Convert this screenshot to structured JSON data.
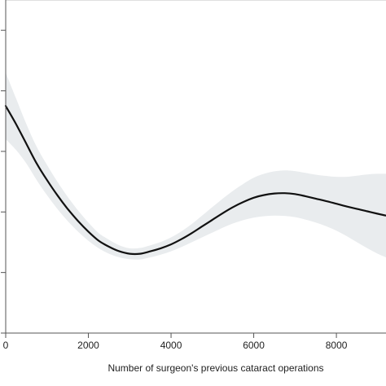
{
  "chart_data": {
    "type": "line",
    "title": "",
    "xlabel": "Number of surgeon's previous cataract operations",
    "ylabel": "",
    "xlim": [
      0,
      9200
    ],
    "x_ticks": [
      0,
      2000,
      4000,
      6000,
      8000
    ],
    "x_tick_labels": [
      "0",
      "2000",
      "4000",
      "6000",
      "8000"
    ],
    "grid": false,
    "legend": "none",
    "colors": {
      "line": "#111111",
      "band": "#e9ecee",
      "frame": "#bfbfbf",
      "axis": "#555555"
    },
    "series": [
      {
        "x": [
          0,
          250,
          500,
          750,
          1000,
          1250,
          1500,
          1750,
          2000,
          2250,
          2500,
          2750,
          3000,
          3250,
          3500,
          3750,
          4000,
          4250,
          4500,
          4750,
          5000,
          5250,
          5500,
          5750,
          6000,
          6250,
          6500,
          6750,
          7000,
          7250,
          7500,
          7750,
          8000,
          8250,
          8500,
          8750,
          9000,
          9200
        ],
        "y": [
          0.75,
          0.69,
          0.625,
          0.56,
          0.505,
          0.455,
          0.41,
          0.37,
          0.335,
          0.305,
          0.285,
          0.27,
          0.262,
          0.262,
          0.27,
          0.28,
          0.293,
          0.31,
          0.33,
          0.352,
          0.374,
          0.396,
          0.416,
          0.433,
          0.447,
          0.456,
          0.461,
          0.462,
          0.459,
          0.452,
          0.444,
          0.436,
          0.427,
          0.418,
          0.41,
          0.402,
          0.394,
          0.388
        ],
        "lower": [
          0.64,
          0.605,
          0.56,
          0.505,
          0.455,
          0.41,
          0.37,
          0.335,
          0.305,
          0.28,
          0.262,
          0.25,
          0.244,
          0.243,
          0.25,
          0.259,
          0.27,
          0.284,
          0.3,
          0.316,
          0.332,
          0.348,
          0.362,
          0.373,
          0.381,
          0.386,
          0.388,
          0.387,
          0.383,
          0.375,
          0.365,
          0.353,
          0.338,
          0.32,
          0.3,
          0.28,
          0.262,
          0.25
        ],
        "upper": [
          0.86,
          0.775,
          0.69,
          0.615,
          0.555,
          0.5,
          0.45,
          0.405,
          0.365,
          0.33,
          0.308,
          0.29,
          0.28,
          0.281,
          0.29,
          0.301,
          0.316,
          0.336,
          0.36,
          0.388,
          0.416,
          0.444,
          0.47,
          0.493,
          0.513,
          0.526,
          0.534,
          0.537,
          0.535,
          0.529,
          0.523,
          0.519,
          0.516,
          0.516,
          0.52,
          0.524,
          0.526,
          0.526
        ]
      }
    ]
  }
}
